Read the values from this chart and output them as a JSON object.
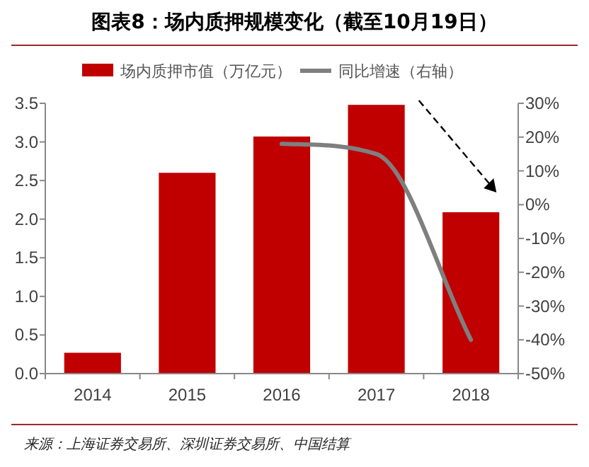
{
  "chart_data": {
    "type": "bar",
    "title": "图表8：场内质押规模变化（截至10月19日）",
    "categories": [
      "2014",
      "2015",
      "2016",
      "2017",
      "2018"
    ],
    "series": [
      {
        "name": "场内质押市值（万亿元）",
        "color": "#c00000",
        "values": [
          0.27,
          2.6,
          3.07,
          3.48,
          2.09
        ]
      },
      {
        "name": "同比增速（右轴）",
        "type": "line",
        "axis": "y2",
        "color": "#7f7f7f",
        "values": [
          null,
          null,
          18,
          15,
          -40
        ]
      }
    ],
    "ylim": [
      0,
      3.5
    ],
    "yticks": [
      {
        "value": 0,
        "label": "0.0"
      },
      {
        "value": 0.5,
        "label": "0.5"
      },
      {
        "value": 1,
        "label": "1.0"
      },
      {
        "value": 1.5,
        "label": "1.5"
      },
      {
        "value": 2,
        "label": "2.0"
      },
      {
        "value": 2.5,
        "label": "2.5"
      },
      {
        "value": 3,
        "label": "3.0"
      },
      {
        "value": 3.5,
        "label": "3.5"
      }
    ],
    "y2lim": [
      -50,
      30
    ],
    "y2ticks": [
      {
        "value": -50,
        "label": "-50%"
      },
      {
        "value": -40,
        "label": "-40%"
      },
      {
        "value": -30,
        "label": "-30%"
      },
      {
        "value": -20,
        "label": "-20%"
      },
      {
        "value": -10,
        "label": "-10%"
      },
      {
        "value": 0,
        "label": "0%"
      },
      {
        "value": 10,
        "label": "10%"
      },
      {
        "value": 20,
        "label": "20%"
      },
      {
        "value": 30,
        "label": "30%"
      }
    ],
    "legend": "top",
    "grid": false,
    "annotations": [
      "来源：上海证券交易所、深圳证券交易所、中国结算"
    ]
  }
}
